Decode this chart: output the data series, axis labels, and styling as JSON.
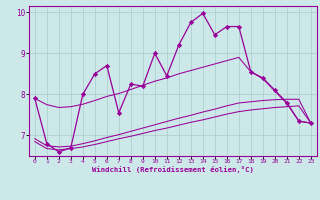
{
  "x": [
    0,
    1,
    2,
    3,
    4,
    5,
    6,
    7,
    8,
    9,
    10,
    11,
    12,
    13,
    14,
    15,
    16,
    17,
    18,
    19,
    20,
    21,
    22,
    23
  ],
  "main_line": [
    7.9,
    6.8,
    6.6,
    6.7,
    8.0,
    8.5,
    8.7,
    7.55,
    8.25,
    8.2,
    9.0,
    8.45,
    9.2,
    9.75,
    9.97,
    9.45,
    9.65,
    9.65,
    8.55,
    8.4,
    8.1,
    7.8,
    7.35,
    7.3
  ],
  "trend_low": [
    6.85,
    6.68,
    6.65,
    6.68,
    6.72,
    6.78,
    6.85,
    6.92,
    6.98,
    7.05,
    7.12,
    7.18,
    7.25,
    7.32,
    7.38,
    7.45,
    7.52,
    7.58,
    7.62,
    7.65,
    7.68,
    7.7,
    7.72,
    7.3
  ],
  "trend_mid": [
    6.92,
    6.75,
    6.72,
    6.74,
    6.8,
    6.87,
    6.95,
    7.02,
    7.1,
    7.18,
    7.26,
    7.34,
    7.42,
    7.49,
    7.57,
    7.64,
    7.72,
    7.79,
    7.82,
    7.85,
    7.87,
    7.88,
    7.88,
    7.3
  ],
  "trend_high": [
    7.9,
    7.75,
    7.68,
    7.7,
    7.76,
    7.85,
    7.95,
    8.02,
    8.12,
    8.22,
    8.32,
    8.4,
    8.5,
    8.58,
    8.66,
    8.74,
    8.82,
    8.9,
    8.55,
    8.38,
    8.08,
    7.78,
    7.35,
    7.3
  ],
  "color": "#990099",
  "bg_color": "#cce8e8",
  "xlabel": "Windchill (Refroidissement éolien,°C)",
  "xlim_min": -0.5,
  "xlim_max": 23.5,
  "ylim_min": 6.5,
  "ylim_max": 10.15,
  "yticks": [
    7,
    8,
    9,
    10
  ],
  "xticks": [
    0,
    1,
    2,
    3,
    4,
    5,
    6,
    7,
    8,
    9,
    10,
    11,
    12,
    13,
    14,
    15,
    16,
    17,
    18,
    19,
    20,
    21,
    22,
    23
  ],
  "grid_color": "#aacccc"
}
